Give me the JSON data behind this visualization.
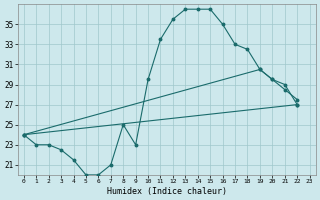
{
  "xlabel": "Humidex (Indice chaleur)",
  "bg_color": "#cde8ec",
  "grid_color": "#a0c8cc",
  "line_color": "#1a6b6b",
  "xlim": [
    -0.5,
    23.5
  ],
  "ylim": [
    20.0,
    37.0
  ],
  "xticks": [
    0,
    1,
    2,
    3,
    4,
    5,
    6,
    7,
    8,
    9,
    10,
    11,
    12,
    13,
    14,
    15,
    16,
    17,
    18,
    19,
    20,
    21,
    22,
    23
  ],
  "yticks": [
    21,
    23,
    25,
    27,
    29,
    31,
    33,
    35
  ],
  "curve1_x": [
    0,
    1,
    2,
    3,
    4,
    5,
    6,
    7,
    8,
    9,
    10,
    11,
    12,
    13,
    14,
    15,
    16,
    17,
    18,
    19,
    20,
    21,
    22
  ],
  "curve1_y": [
    24.0,
    23.0,
    23.0,
    22.5,
    21.5,
    20.0,
    20.0,
    21.0,
    25.0,
    23.0,
    29.5,
    33.5,
    35.5,
    36.5,
    36.5,
    36.5,
    35.0,
    33.0,
    32.5,
    30.5,
    29.5,
    28.5,
    27.5
  ],
  "line2_x": [
    0,
    19,
    20,
    21,
    22
  ],
  "line2_y": [
    24.0,
    30.5,
    29.5,
    29.0,
    27.0
  ],
  "line3_x": [
    0,
    22
  ],
  "line3_y": [
    24.0,
    27.0
  ]
}
